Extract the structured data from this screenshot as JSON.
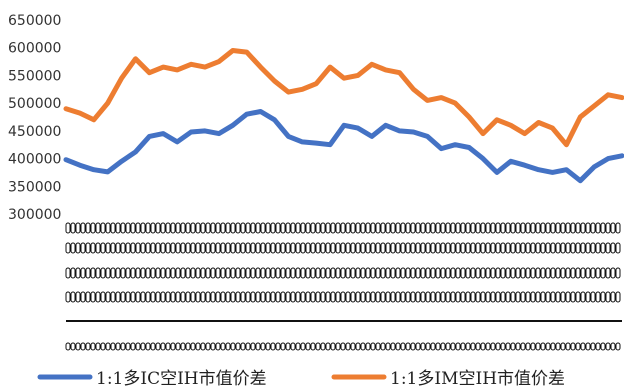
{
  "chart_data": {
    "type": "line",
    "title": "",
    "xlabel": "",
    "ylabel": "",
    "ylim": [
      300000,
      650000
    ],
    "yticks": [
      300000,
      350000,
      400000,
      450000,
      500000,
      550000,
      600000,
      650000
    ],
    "ytick_labels": [
      "300000",
      "350000",
      "400000",
      "450000",
      "500000",
      "550000",
      "600000",
      "650000"
    ],
    "grid": false,
    "legend_position": "bottom",
    "x_index_count": 41,
    "series": [
      {
        "name": "1:1多IC空IH市值价差",
        "color": "#4472C4",
        "values": [
          398000,
          388000,
          380000,
          376000,
          395000,
          412000,
          440000,
          445000,
          430000,
          448000,
          450000,
          445000,
          460000,
          480000,
          485000,
          470000,
          440000,
          430000,
          428000,
          425000,
          460000,
          455000,
          440000,
          460000,
          450000,
          448000,
          440000,
          418000,
          425000,
          420000,
          400000,
          375000,
          395000,
          388000,
          380000,
          375000,
          380000,
          360000,
          385000,
          400000,
          405000
        ]
      },
      {
        "name": "1:1多IM空IH市值价差",
        "color": "#ED7D31",
        "values": [
          490000,
          482000,
          470000,
          500000,
          545000,
          580000,
          555000,
          565000,
          560000,
          570000,
          565000,
          575000,
          595000,
          592000,
          565000,
          540000,
          520000,
          525000,
          535000,
          565000,
          545000,
          550000,
          570000,
          560000,
          555000,
          525000,
          505000,
          510000,
          500000,
          475000,
          445000,
          470000,
          460000,
          445000,
          465000,
          455000,
          425000,
          475000,
          495000,
          515000,
          510000
        ]
      }
    ]
  }
}
